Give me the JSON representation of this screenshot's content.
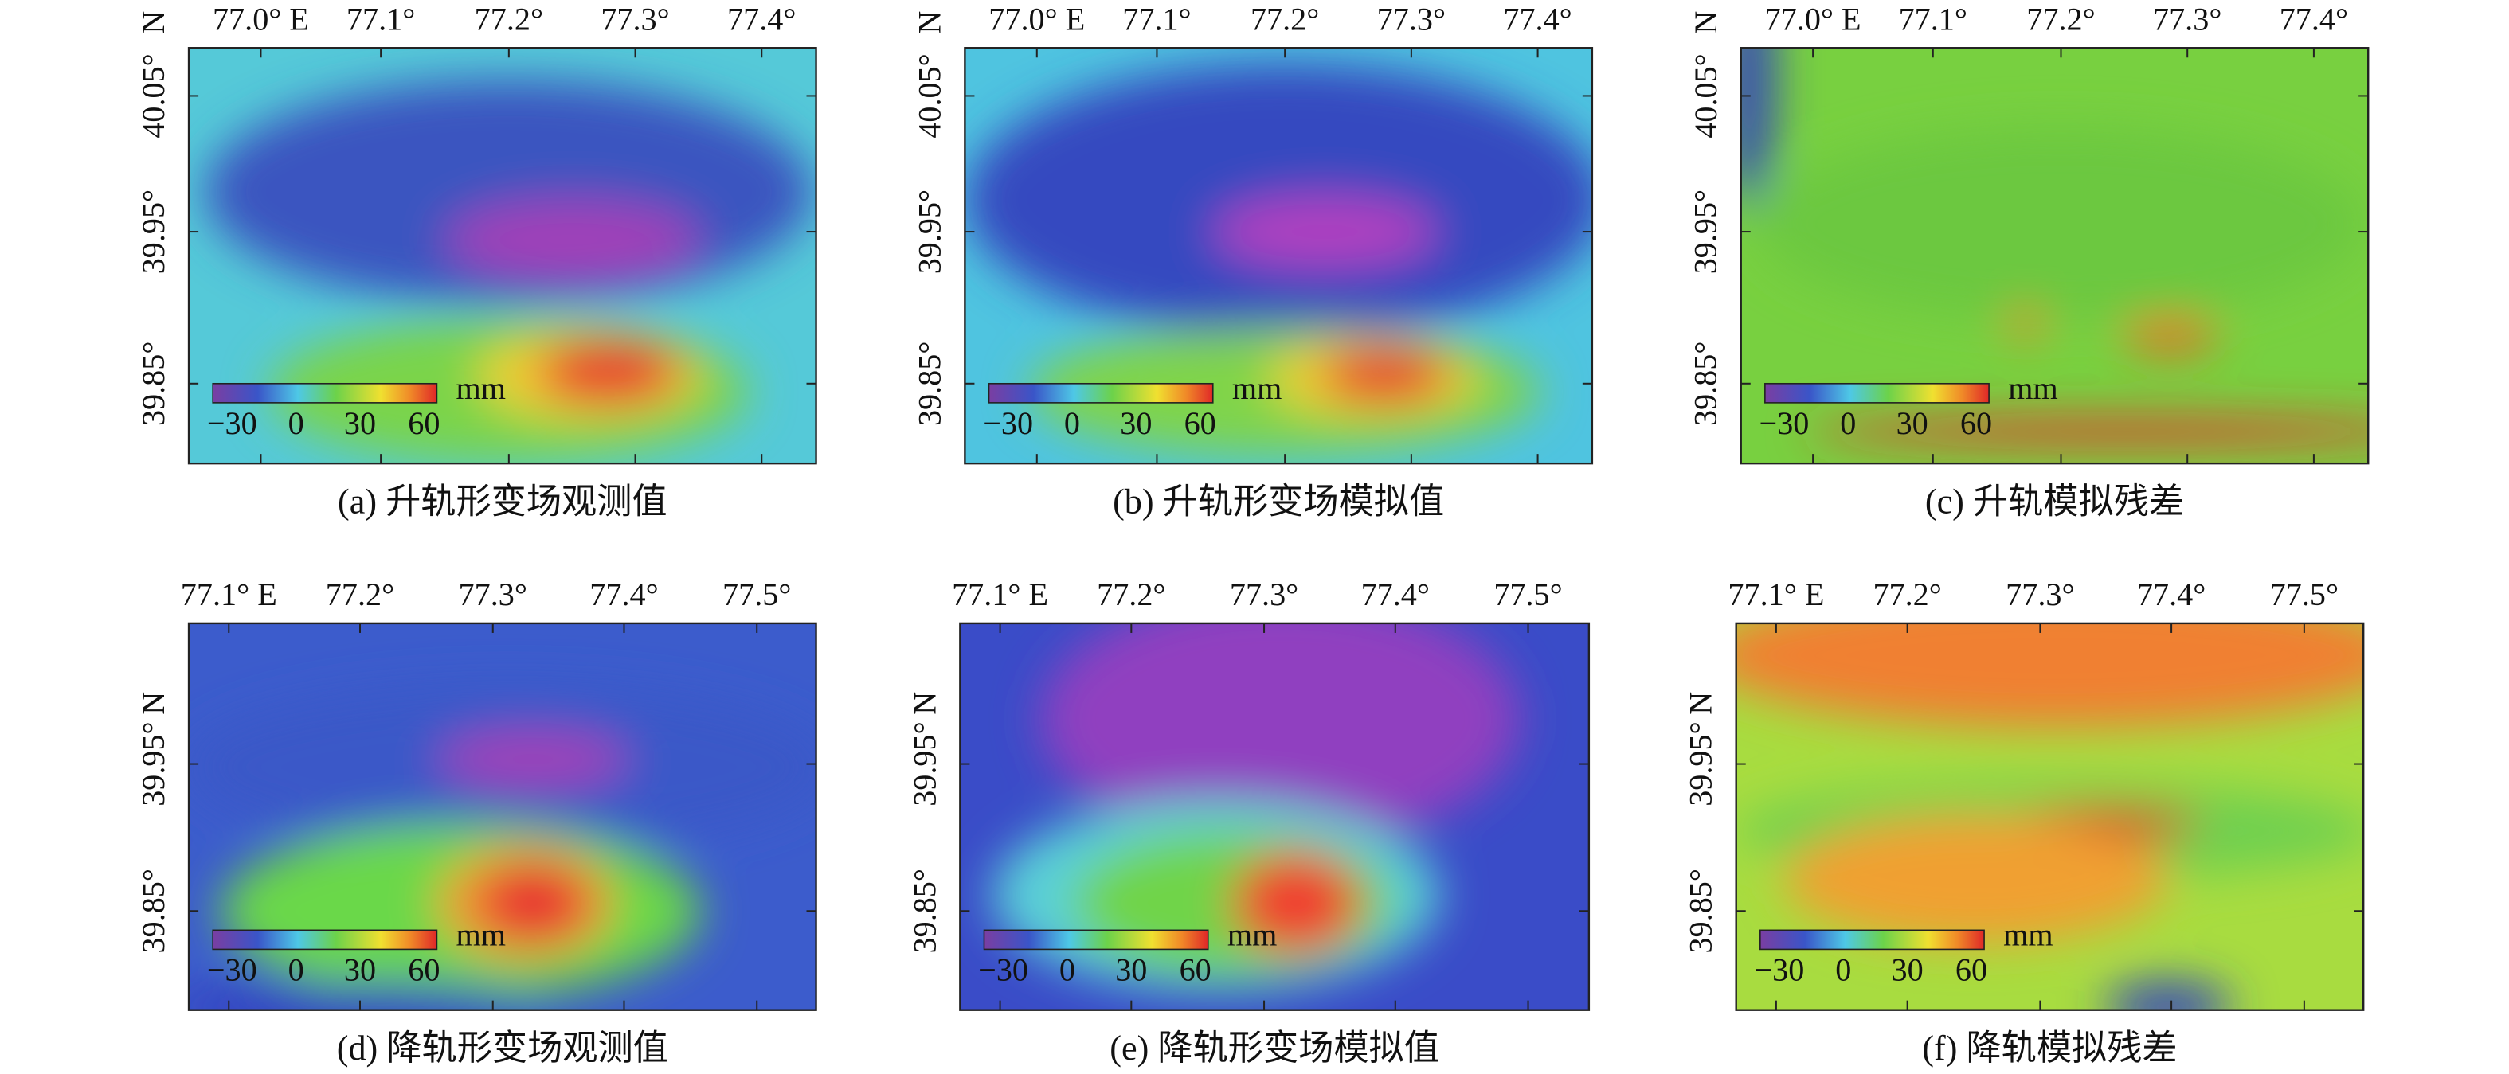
{
  "panels": [
    {
      "caption": "(a) 升轨形变场观测值",
      "lon_ticks": [
        "77.0° E",
        "77.1°",
        "77.2°",
        "77.3°",
        "77.4°"
      ],
      "lat_ticks": [
        "39.85°",
        "39.95°",
        "40.05°"
      ],
      "lat_unit": "N",
      "colorbar": {
        "ticks": [
          "−30",
          "0",
          "30",
          "60"
        ],
        "unit": "mm"
      }
    },
    {
      "caption": "(b) 升轨形变场模拟值",
      "lon_ticks": [
        "77.0° E",
        "77.1°",
        "77.2°",
        "77.3°",
        "77.4°"
      ],
      "lat_ticks": [
        "39.85°",
        "39.95°",
        "40.05°"
      ],
      "lat_unit": "N",
      "colorbar": {
        "ticks": [
          "−30",
          "0",
          "30",
          "60"
        ],
        "unit": "mm"
      }
    },
    {
      "caption": "(c) 升轨模拟残差",
      "lon_ticks": [
        "77.0° E",
        "77.1°",
        "77.2°",
        "77.3°",
        "77.4°"
      ],
      "lat_ticks": [
        "39.85°",
        "39.95°",
        "40.05°"
      ],
      "lat_unit": "N",
      "colorbar": {
        "ticks": [
          "−30",
          "0",
          "30",
          "60"
        ],
        "unit": "mm"
      }
    },
    {
      "caption": "(d) 降轨形变场观测值",
      "lon_ticks": [
        "77.1° E",
        "77.2°",
        "77.3°",
        "77.4°",
        "77.5°"
      ],
      "lat_ticks": [
        "39.85°",
        "39.95°"
      ],
      "lat_unit": "N",
      "colorbar": {
        "ticks": [
          "−30",
          "0",
          "30",
          "60"
        ],
        "unit": "mm"
      }
    },
    {
      "caption": "(e) 降轨形变场模拟值",
      "lon_ticks": [
        "77.1° E",
        "77.2°",
        "77.3°",
        "77.4°",
        "77.5°"
      ],
      "lat_ticks": [
        "39.85°",
        "39.95°"
      ],
      "lat_unit": "N",
      "colorbar": {
        "ticks": [
          "−30",
          "0",
          "30",
          "60"
        ],
        "unit": "mm"
      }
    },
    {
      "caption": "(f) 降轨模拟残差",
      "lon_ticks": [
        "77.1° E",
        "77.2°",
        "77.3°",
        "77.4°",
        "77.5°"
      ],
      "lat_ticks": [
        "39.85°",
        "39.95°"
      ],
      "lat_unit": "N",
      "colorbar": {
        "ticks": [
          "−30",
          "0",
          "30",
          "60"
        ],
        "unit": "mm"
      }
    }
  ]
}
